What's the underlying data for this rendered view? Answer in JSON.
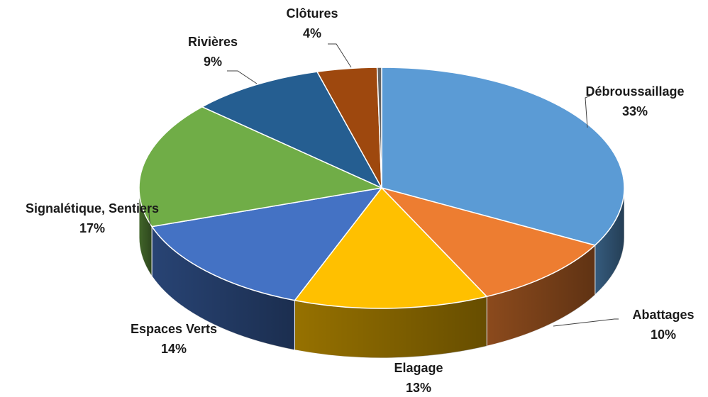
{
  "chart_data": {
    "type": "pie",
    "style": "3d",
    "title": "",
    "slices": [
      {
        "name": "Débroussaillage",
        "value": 33,
        "label": "33%",
        "color": "#5B9BD5"
      },
      {
        "name": "Abattages",
        "value": 10,
        "label": "10%",
        "color": "#ED7D31"
      },
      {
        "name": "Elagage",
        "value": 13,
        "label": "13%",
        "color": "#FFC000"
      },
      {
        "name": "Espaces Verts",
        "value": 14,
        "label": "14%",
        "color": "#4472C4"
      },
      {
        "name": "Signalétique, Sentiers",
        "value": 17,
        "label": "17%",
        "color": "#70AD47"
      },
      {
        "name": "Rivières",
        "value": 9,
        "label": "9%",
        "color": "#255E91"
      },
      {
        "name": "Clôtures",
        "value": 4,
        "label": "4%",
        "color": "#9E480E"
      },
      {
        "name": "",
        "value": 0.3,
        "label": "",
        "color": "#636363"
      }
    ]
  }
}
